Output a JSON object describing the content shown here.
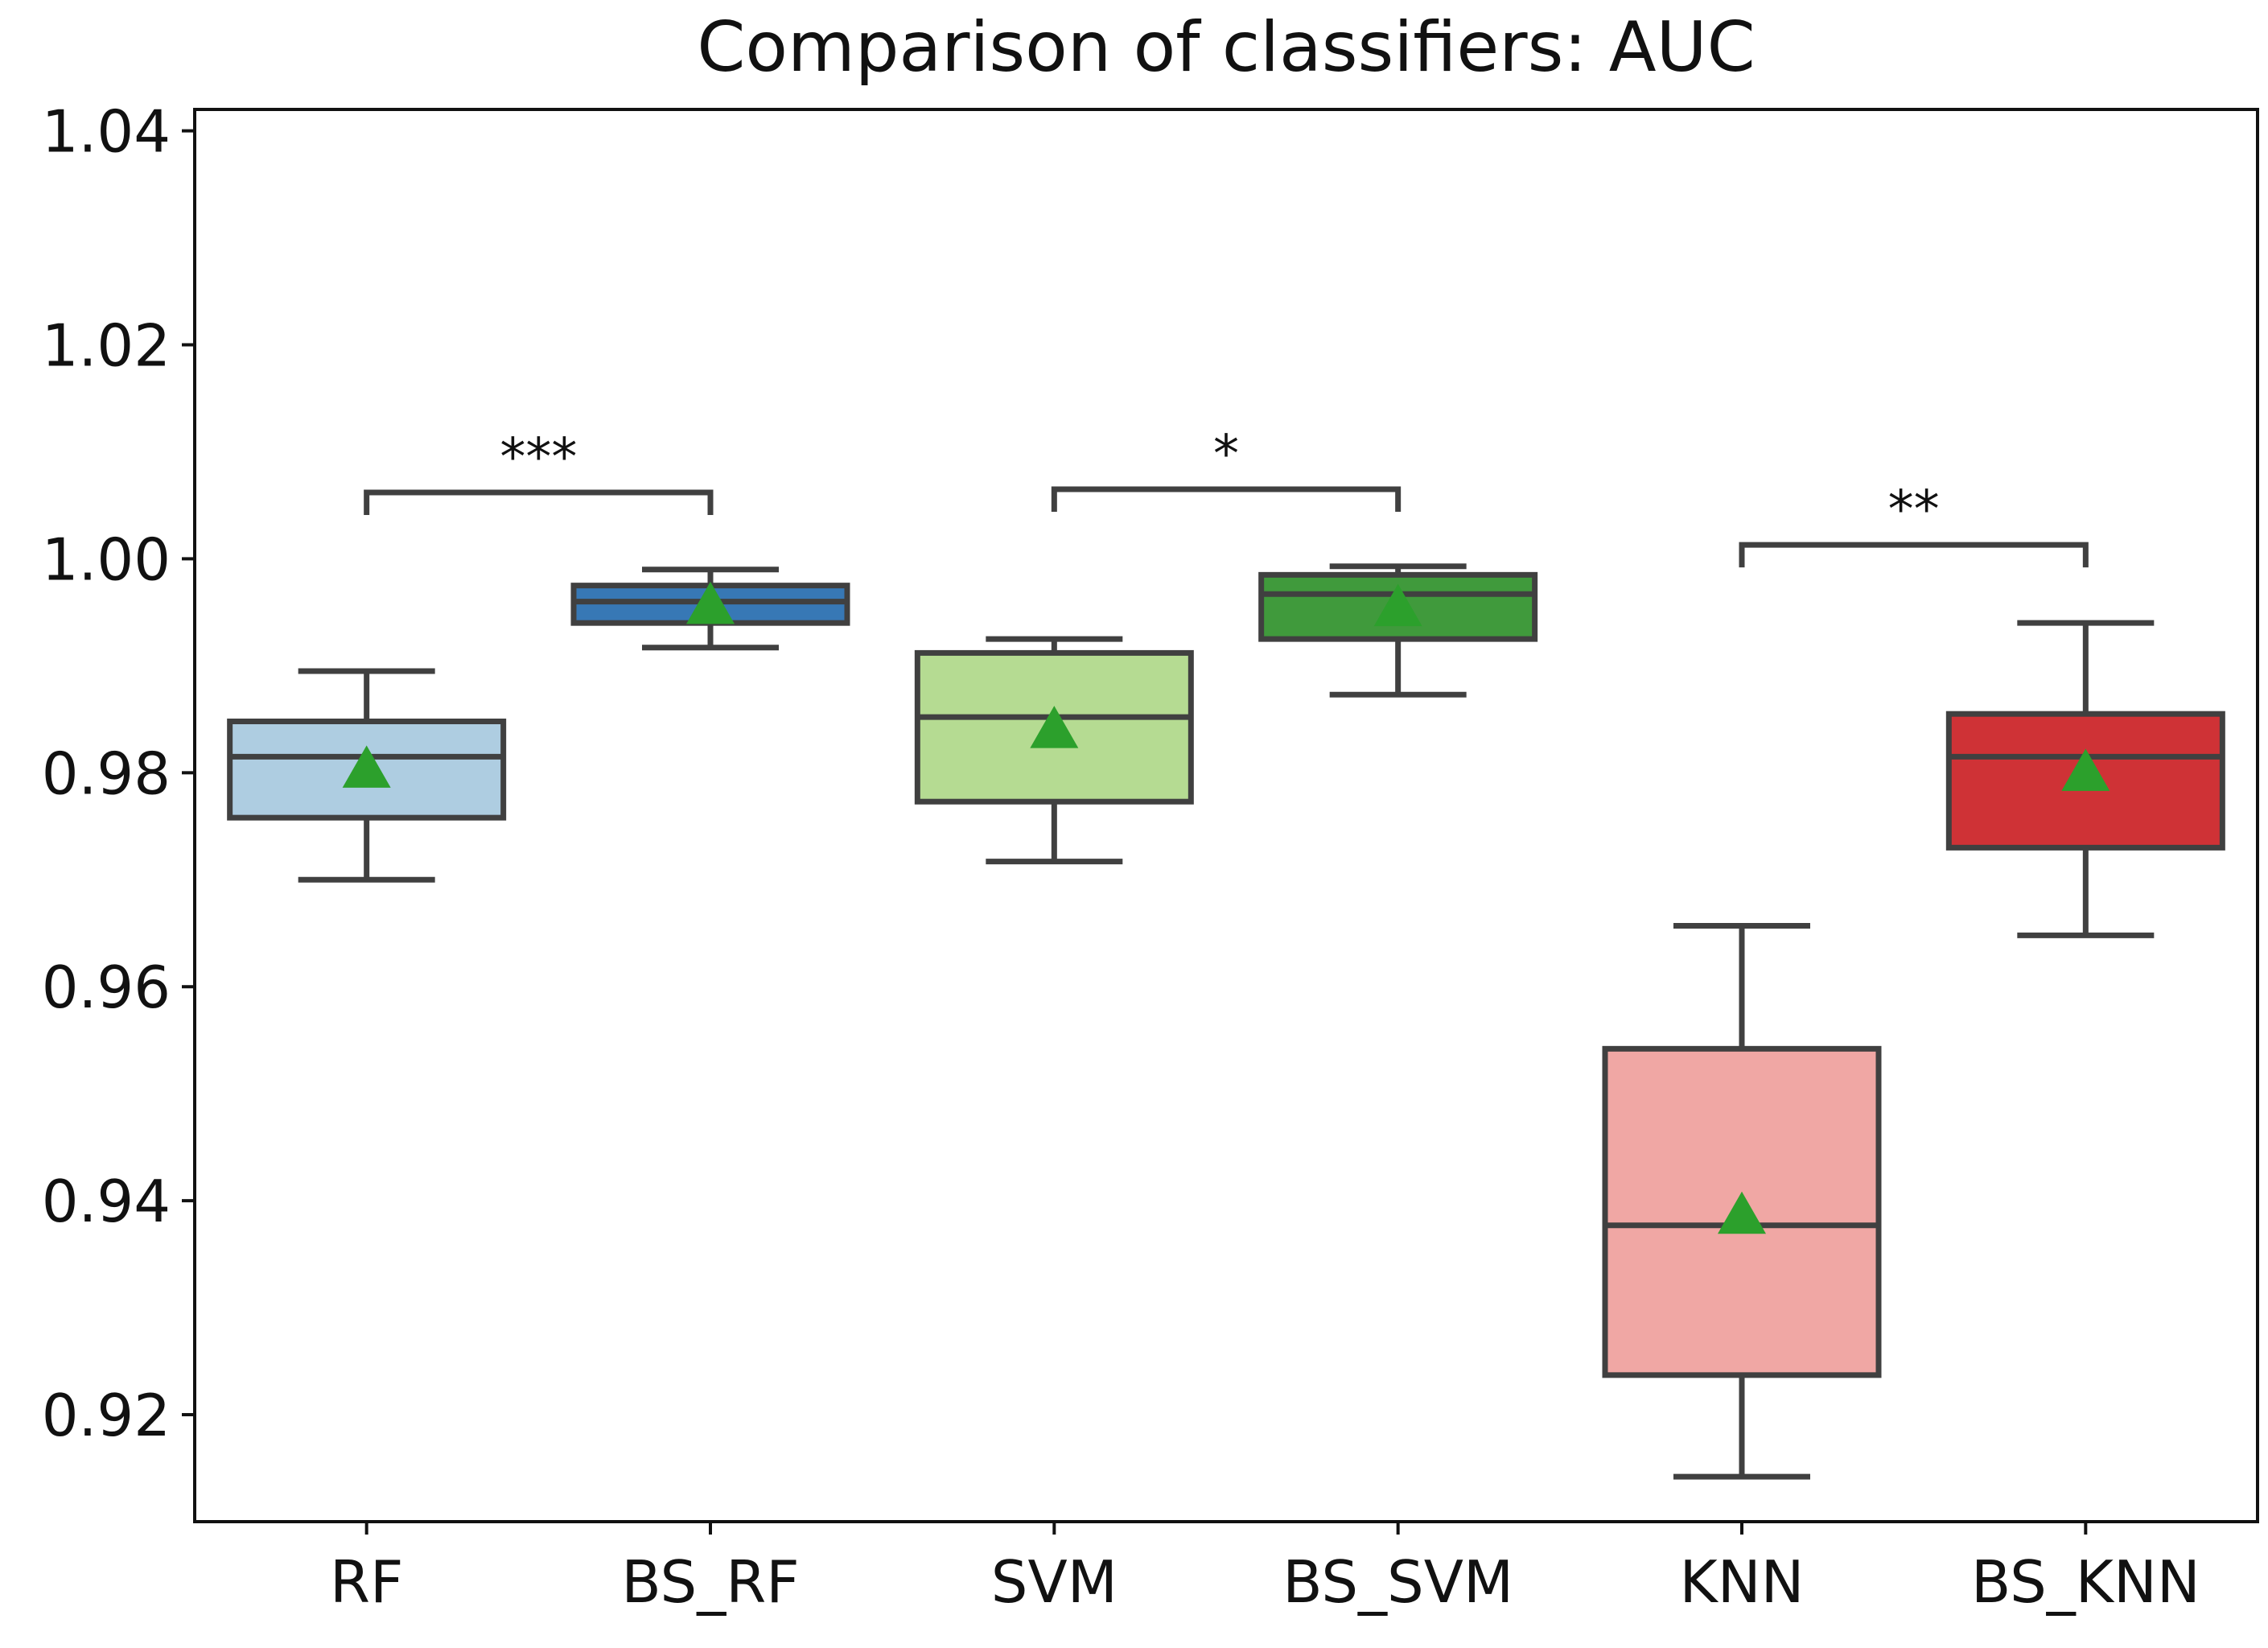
{
  "chart_data": {
    "type": "box",
    "title": "Comparison of classifiers: AUC",
    "xlabel": "",
    "ylabel": "",
    "ylim": [
      0.91,
      1.042
    ],
    "yticks": [
      0.92,
      0.94,
      0.96,
      0.98,
      1.0,
      1.02,
      1.04
    ],
    "ytick_labels": [
      "0.92",
      "0.94",
      "0.96",
      "0.98",
      "1.00",
      "1.02",
      "1.04"
    ],
    "grid": false,
    "categories": [
      "RF",
      "BS_RF",
      "SVM",
      "BS_SVM",
      "KNN",
      "BS_KNN"
    ],
    "boxes": [
      {
        "name": "RF",
        "whisker_low": 0.97,
        "q1": 0.9758,
        "median": 0.9815,
        "q3": 0.9848,
        "whisker_high": 0.9895,
        "mean": 0.9803,
        "color": "#aecde1"
      },
      {
        "name": "BS_RF",
        "whisker_low": 0.9917,
        "q1": 0.994,
        "median": 0.996,
        "q3": 0.9975,
        "whisker_high": 0.999,
        "mean": 0.9956,
        "color": "#3778b5"
      },
      {
        "name": "SVM",
        "whisker_low": 0.9717,
        "q1": 0.9773,
        "median": 0.9852,
        "q3": 0.9912,
        "whisker_high": 0.9925,
        "mean": 0.984,
        "color": "#b5db92"
      },
      {
        "name": "BS_SVM",
        "whisker_low": 0.9873,
        "q1": 0.9925,
        "median": 0.9967,
        "q3": 0.9985,
        "whisker_high": 0.9993,
        "mean": 0.9954,
        "color": "#409a3c"
      },
      {
        "name": "KNN",
        "whisker_low": 0.9142,
        "q1": 0.9237,
        "median": 0.9377,
        "q3": 0.9542,
        "whisker_high": 0.9657,
        "mean": 0.9386,
        "color": "#f0a7a4"
      },
      {
        "name": "BS_KNN",
        "whisker_low": 0.9648,
        "q1": 0.973,
        "median": 0.9815,
        "q3": 0.9855,
        "whisker_high": 0.994,
        "mean": 0.98,
        "color": "#cf3236"
      }
    ],
    "significance": [
      {
        "from": "RF",
        "to": "BS_RF",
        "y": 1.0062,
        "label": "***"
      },
      {
        "from": "SVM",
        "to": "BS_SVM",
        "y": 1.0065,
        "label": "*"
      },
      {
        "from": "KNN",
        "to": "BS_KNN",
        "y": 1.0013,
        "label": "**"
      }
    ],
    "mean_marker_color": "#2ca02c",
    "line_color": "#404040"
  }
}
